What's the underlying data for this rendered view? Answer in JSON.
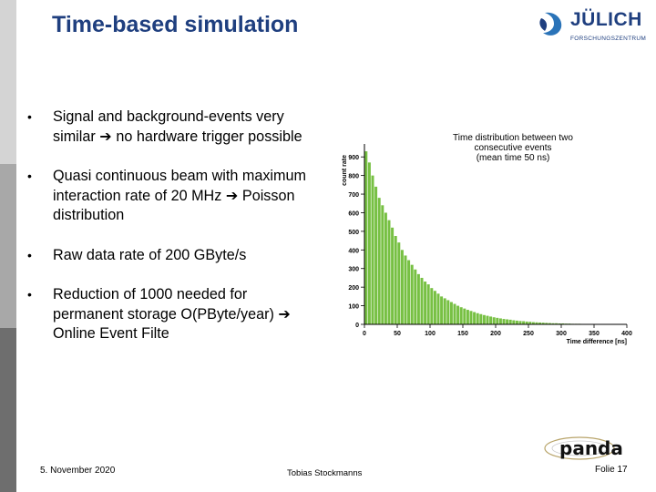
{
  "slide": {
    "title": "Time-based simulation",
    "bullets": [
      "Signal and background-events very similar ➔ no hardware trigger possible",
      "Quasi continuous beam with maximum interaction rate of 20 MHz ➔ Poisson distribution",
      "Raw data rate of 200 GByte/s",
      "Reduction of 1000 needed for permanent storage O(PByte/year) ➔ Online Event Filte"
    ],
    "bullet_marker": "•"
  },
  "logo": {
    "name": "JÜLICH",
    "subtitle": "FORSCHUNGSZENTRUM"
  },
  "panda_logo": {
    "text": "panda"
  },
  "footer": {
    "date": "5. November 2020",
    "author": "Tobias Stockmanns",
    "page": "Folie 17"
  },
  "colors": {
    "title": "#1f3f7f",
    "bars": "#77c043"
  },
  "chart_data": {
    "type": "bar",
    "title_lines": [
      "Time distribution between two",
      "consecutive events",
      "(mean time 50 ns)"
    ],
    "xlabel": "Time difference [ns]",
    "ylabel": "count rate",
    "xlim": [
      0,
      400
    ],
    "ylim": [
      0,
      950
    ],
    "xticks": [
      "0",
      "50",
      "100",
      "150",
      "200",
      "250",
      "300",
      "350",
      "400"
    ],
    "yticks": [
      "0",
      "100",
      "200",
      "300",
      "400",
      "500",
      "600",
      "700",
      "800",
      "900"
    ],
    "bin_width": 5,
    "values": [
      930,
      870,
      800,
      740,
      680,
      640,
      600,
      560,
      520,
      475,
      440,
      400,
      370,
      345,
      320,
      295,
      270,
      250,
      230,
      215,
      195,
      180,
      165,
      150,
      140,
      130,
      120,
      110,
      100,
      92,
      85,
      78,
      72,
      66,
      60,
      55,
      50,
      46,
      42,
      38,
      35,
      32,
      29,
      27,
      25,
      22,
      20,
      18,
      17,
      15,
      14,
      12,
      11,
      10,
      9,
      8,
      7,
      6,
      6,
      5,
      5,
      4,
      4,
      3,
      3,
      3,
      2,
      2,
      2,
      2,
      1,
      1,
      1,
      1,
      1
    ]
  }
}
